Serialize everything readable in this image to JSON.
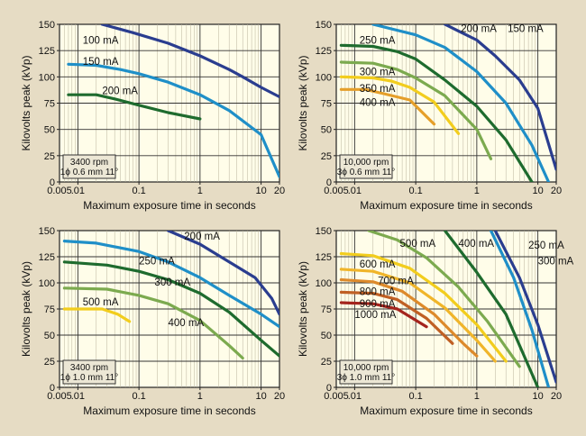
{
  "chart_data": [
    {
      "type": "line",
      "id": "single-phase-0.6mm",
      "xscale": "log",
      "xlim": [
        0.005,
        20
      ],
      "ylim": [
        0,
        150
      ],
      "xlabel": "Maximum exposure time in seconds",
      "ylabel": "Kilovolts peak (kVp)",
      "xticks": [
        "0.005",
        ".01",
        "0.1",
        "1",
        "10",
        "20"
      ],
      "xtick_values": [
        0.005,
        0.01,
        0.1,
        1,
        10,
        20
      ],
      "yticks": [
        0,
        25,
        50,
        75,
        100,
        125,
        150
      ],
      "info": [
        "3400 rpm",
        "1ϕ 0.6 mm 11°"
      ],
      "series": [
        {
          "name": "100 mA",
          "color": "#2a3d8f",
          "x": [
            0.025,
            0.08,
            0.3,
            1,
            3,
            5,
            10,
            20
          ],
          "y": [
            150,
            142,
            132,
            120,
            107,
            100,
            90,
            81
          ],
          "label_pos": [
            0.012,
            135
          ]
        },
        {
          "name": "150 mA",
          "color": "#1f8fc8",
          "x": [
            0.007,
            0.02,
            0.05,
            0.1,
            0.3,
            1,
            3,
            10,
            20
          ],
          "y": [
            112,
            111,
            107,
            103,
            95,
            83,
            68,
            45,
            5
          ],
          "label_pos": [
            0.012,
            115
          ]
        },
        {
          "name": "200 mA",
          "color": "#1e6b2e",
          "x": [
            0.007,
            0.02,
            0.04,
            0.1,
            0.3,
            1
          ],
          "y": [
            83,
            83,
            79,
            73,
            66,
            60
          ],
          "label_pos": [
            0.025,
            87
          ]
        }
      ]
    },
    {
      "type": "line",
      "id": "three-phase-0.6mm",
      "xscale": "log",
      "xlim": [
        0.005,
        20
      ],
      "ylim": [
        0,
        150
      ],
      "xlabel": "Maximum exposure time in seconds",
      "ylabel": "Kilovolts peak (kVp)",
      "xticks": [
        "0.005",
        ".01",
        "0.1",
        "1",
        "10",
        "20"
      ],
      "xtick_values": [
        0.005,
        0.01,
        0.1,
        1,
        10,
        20
      ],
      "yticks": [
        0,
        25,
        50,
        75,
        100,
        125,
        150
      ],
      "info": [
        "10,000 rpm",
        "3ϕ 0.6 mm 11°"
      ],
      "series": [
        {
          "name": "150 mA",
          "color": "#2a3d8f",
          "x": [
            0.3,
            1,
            2,
            5,
            10,
            20
          ],
          "y": [
            150,
            135,
            120,
            97,
            70,
            12
          ],
          "label_pos": [
            3.2,
            146
          ]
        },
        {
          "name": "200 mA",
          "color": "#1f8fc8",
          "x": [
            0.02,
            0.1,
            0.3,
            1,
            3,
            8,
            15
          ],
          "y": [
            150,
            140,
            128,
            105,
            75,
            35,
            0
          ],
          "label_pos": [
            0.55,
            146
          ]
        },
        {
          "name": "250 mA",
          "color": "#1e6b2e",
          "x": [
            0.006,
            0.02,
            0.05,
            0.1,
            0.3,
            1,
            3,
            8
          ],
          "y": [
            130,
            129,
            124,
            117,
            97,
            72,
            40,
            0
          ],
          "label_pos": [
            0.012,
            135
          ]
        },
        {
          "name": "300 mA",
          "color": "#7caa4f",
          "x": [
            0.006,
            0.02,
            0.05,
            0.1,
            0.3,
            1,
            1.7
          ],
          "y": [
            114,
            113,
            107,
            99,
            82,
            50,
            22
          ],
          "label_pos": [
            0.012,
            105
          ]
        },
        {
          "name": "350 mA",
          "color": "#f2cd1d",
          "x": [
            0.006,
            0.02,
            0.04,
            0.08,
            0.2,
            0.5
          ],
          "y": [
            100,
            99,
            96,
            90,
            76,
            46
          ],
          "label_pos": [
            0.012,
            89
          ]
        },
        {
          "name": "400 mA",
          "color": "#e59f2a",
          "x": [
            0.006,
            0.015,
            0.03,
            0.08,
            0.2
          ],
          "y": [
            88,
            88,
            84,
            78,
            55
          ],
          "label_pos": [
            0.012,
            76
          ]
        }
      ]
    },
    {
      "type": "line",
      "id": "single-phase-1.0mm",
      "xscale": "log",
      "xlim": [
        0.005,
        20
      ],
      "ylim": [
        0,
        150
      ],
      "xlabel": "Maximum exposure time in seconds",
      "ylabel": "Kilovolts peak (kVp)",
      "xticks": [
        "0.005",
        ".01",
        "0.1",
        "1",
        "10",
        "20"
      ],
      "xtick_values": [
        0.005,
        0.01,
        0.1,
        1,
        10,
        20
      ],
      "yticks": [
        0,
        25,
        50,
        75,
        100,
        125,
        150
      ],
      "info": [
        "3400 rpm",
        "1ϕ 1.0 mm 11°"
      ],
      "series": [
        {
          "name": "200 mA",
          "color": "#2a3d8f",
          "x": [
            0.3,
            1,
            3,
            8,
            15,
            20
          ],
          "y": [
            150,
            137,
            120,
            105,
            85,
            70
          ],
          "label_pos": [
            0.55,
            145
          ]
        },
        {
          "name": "250 mA",
          "color": "#1f8fc8",
          "x": [
            0.006,
            0.02,
            0.1,
            0.3,
            1,
            3,
            10,
            20
          ],
          "y": [
            140,
            138,
            130,
            120,
            105,
            88,
            70,
            58
          ],
          "label_pos": [
            0.1,
            121
          ]
        },
        {
          "name": "300 mA",
          "color": "#1e6b2e",
          "x": [
            0.006,
            0.03,
            0.1,
            0.3,
            1,
            3,
            10,
            20
          ],
          "y": [
            120,
            117,
            111,
            103,
            90,
            72,
            45,
            30
          ],
          "label_pos": [
            0.18,
            101
          ]
        },
        {
          "name": "400 mA",
          "color": "#7caa4f",
          "x": [
            0.006,
            0.03,
            0.1,
            0.3,
            1,
            3,
            5
          ],
          "y": [
            95,
            94,
            88,
            80,
            64,
            40,
            28
          ],
          "label_pos": [
            0.3,
            62
          ]
        },
        {
          "name": "500 mA",
          "color": "#f2cd1d",
          "x": [
            0.006,
            0.025,
            0.045,
            0.07
          ],
          "y": [
            75,
            75,
            70,
            63
          ],
          "label_pos": [
            0.012,
            82
          ]
        }
      ]
    },
    {
      "type": "line",
      "id": "three-phase-1.0mm",
      "xscale": "log",
      "xlim": [
        0.005,
        20
      ],
      "ylim": [
        0,
        150
      ],
      "xlabel": "Maximum exposure time in seconds",
      "ylabel": "Kilovolts peak (kVp)",
      "xticks": [
        "0.005",
        ".01",
        "0.1",
        "1",
        "10",
        "20"
      ],
      "xtick_values": [
        0.005,
        0.01,
        0.1,
        1,
        10,
        20
      ],
      "yticks": [
        0,
        25,
        50,
        75,
        100,
        125,
        150
      ],
      "info": [
        "10,000 rpm",
        "3ϕ 1.0 mm 11°"
      ],
      "series": [
        {
          "name": "250 mA",
          "color": "#2a3d8f",
          "x": [
            2,
            5,
            10,
            20
          ],
          "y": [
            150,
            105,
            60,
            5
          ],
          "label_pos": [
            7,
            136
          ]
        },
        {
          "name": "300 mA",
          "color": "#1f8fc8",
          "x": [
            1.7,
            4,
            8,
            15
          ],
          "y": [
            150,
            105,
            55,
            0
          ],
          "label_pos": [
            10,
            121
          ]
        },
        {
          "name": "400 mA",
          "color": "#1e6b2e",
          "x": [
            0.3,
            1,
            3,
            10
          ],
          "y": [
            150,
            110,
            70,
            0
          ],
          "label_pos": [
            0.5,
            138
          ]
        },
        {
          "name": "500 mA",
          "color": "#7caa4f",
          "x": [
            0.017,
            0.05,
            0.15,
            0.5,
            1.5,
            5
          ],
          "y": [
            150,
            141,
            124,
            96,
            63,
            20
          ],
          "label_pos": [
            0.055,
            138
          ]
        },
        {
          "name": "600 mA",
          "color": "#f2cd1d",
          "x": [
            0.006,
            0.02,
            0.08,
            0.3,
            1,
            3
          ],
          "y": [
            128,
            126,
            114,
            90,
            60,
            25
          ],
          "label_pos": [
            0.012,
            118
          ]
        },
        {
          "name": "700 mA",
          "color": "#f0b52a",
          "x": [
            0.006,
            0.02,
            0.08,
            0.3,
            1,
            2
          ],
          "y": [
            113,
            111,
            100,
            76,
            45,
            25
          ],
          "label_pos": [
            0.024,
            102
          ]
        },
        {
          "name": "800 mA",
          "color": "#dd8a2b",
          "x": [
            0.006,
            0.02,
            0.06,
            0.2,
            0.6,
            1
          ],
          "y": [
            103,
            101,
            92,
            70,
            42,
            30
          ],
          "label_pos": [
            0.012,
            92
          ]
        },
        {
          "name": "900 mA",
          "color": "#c06024",
          "x": [
            0.006,
            0.02,
            0.05,
            0.15,
            0.4
          ],
          "y": [
            91,
            90,
            84,
            66,
            42
          ],
          "label_pos": [
            0.012,
            80
          ]
        },
        {
          "name": "1000 mA",
          "color": "#a4241d",
          "x": [
            0.006,
            0.02,
            0.05,
            0.15
          ],
          "y": [
            81,
            80,
            75,
            58
          ],
          "label_pos": [
            0.01,
            70
          ]
        }
      ]
    }
  ]
}
